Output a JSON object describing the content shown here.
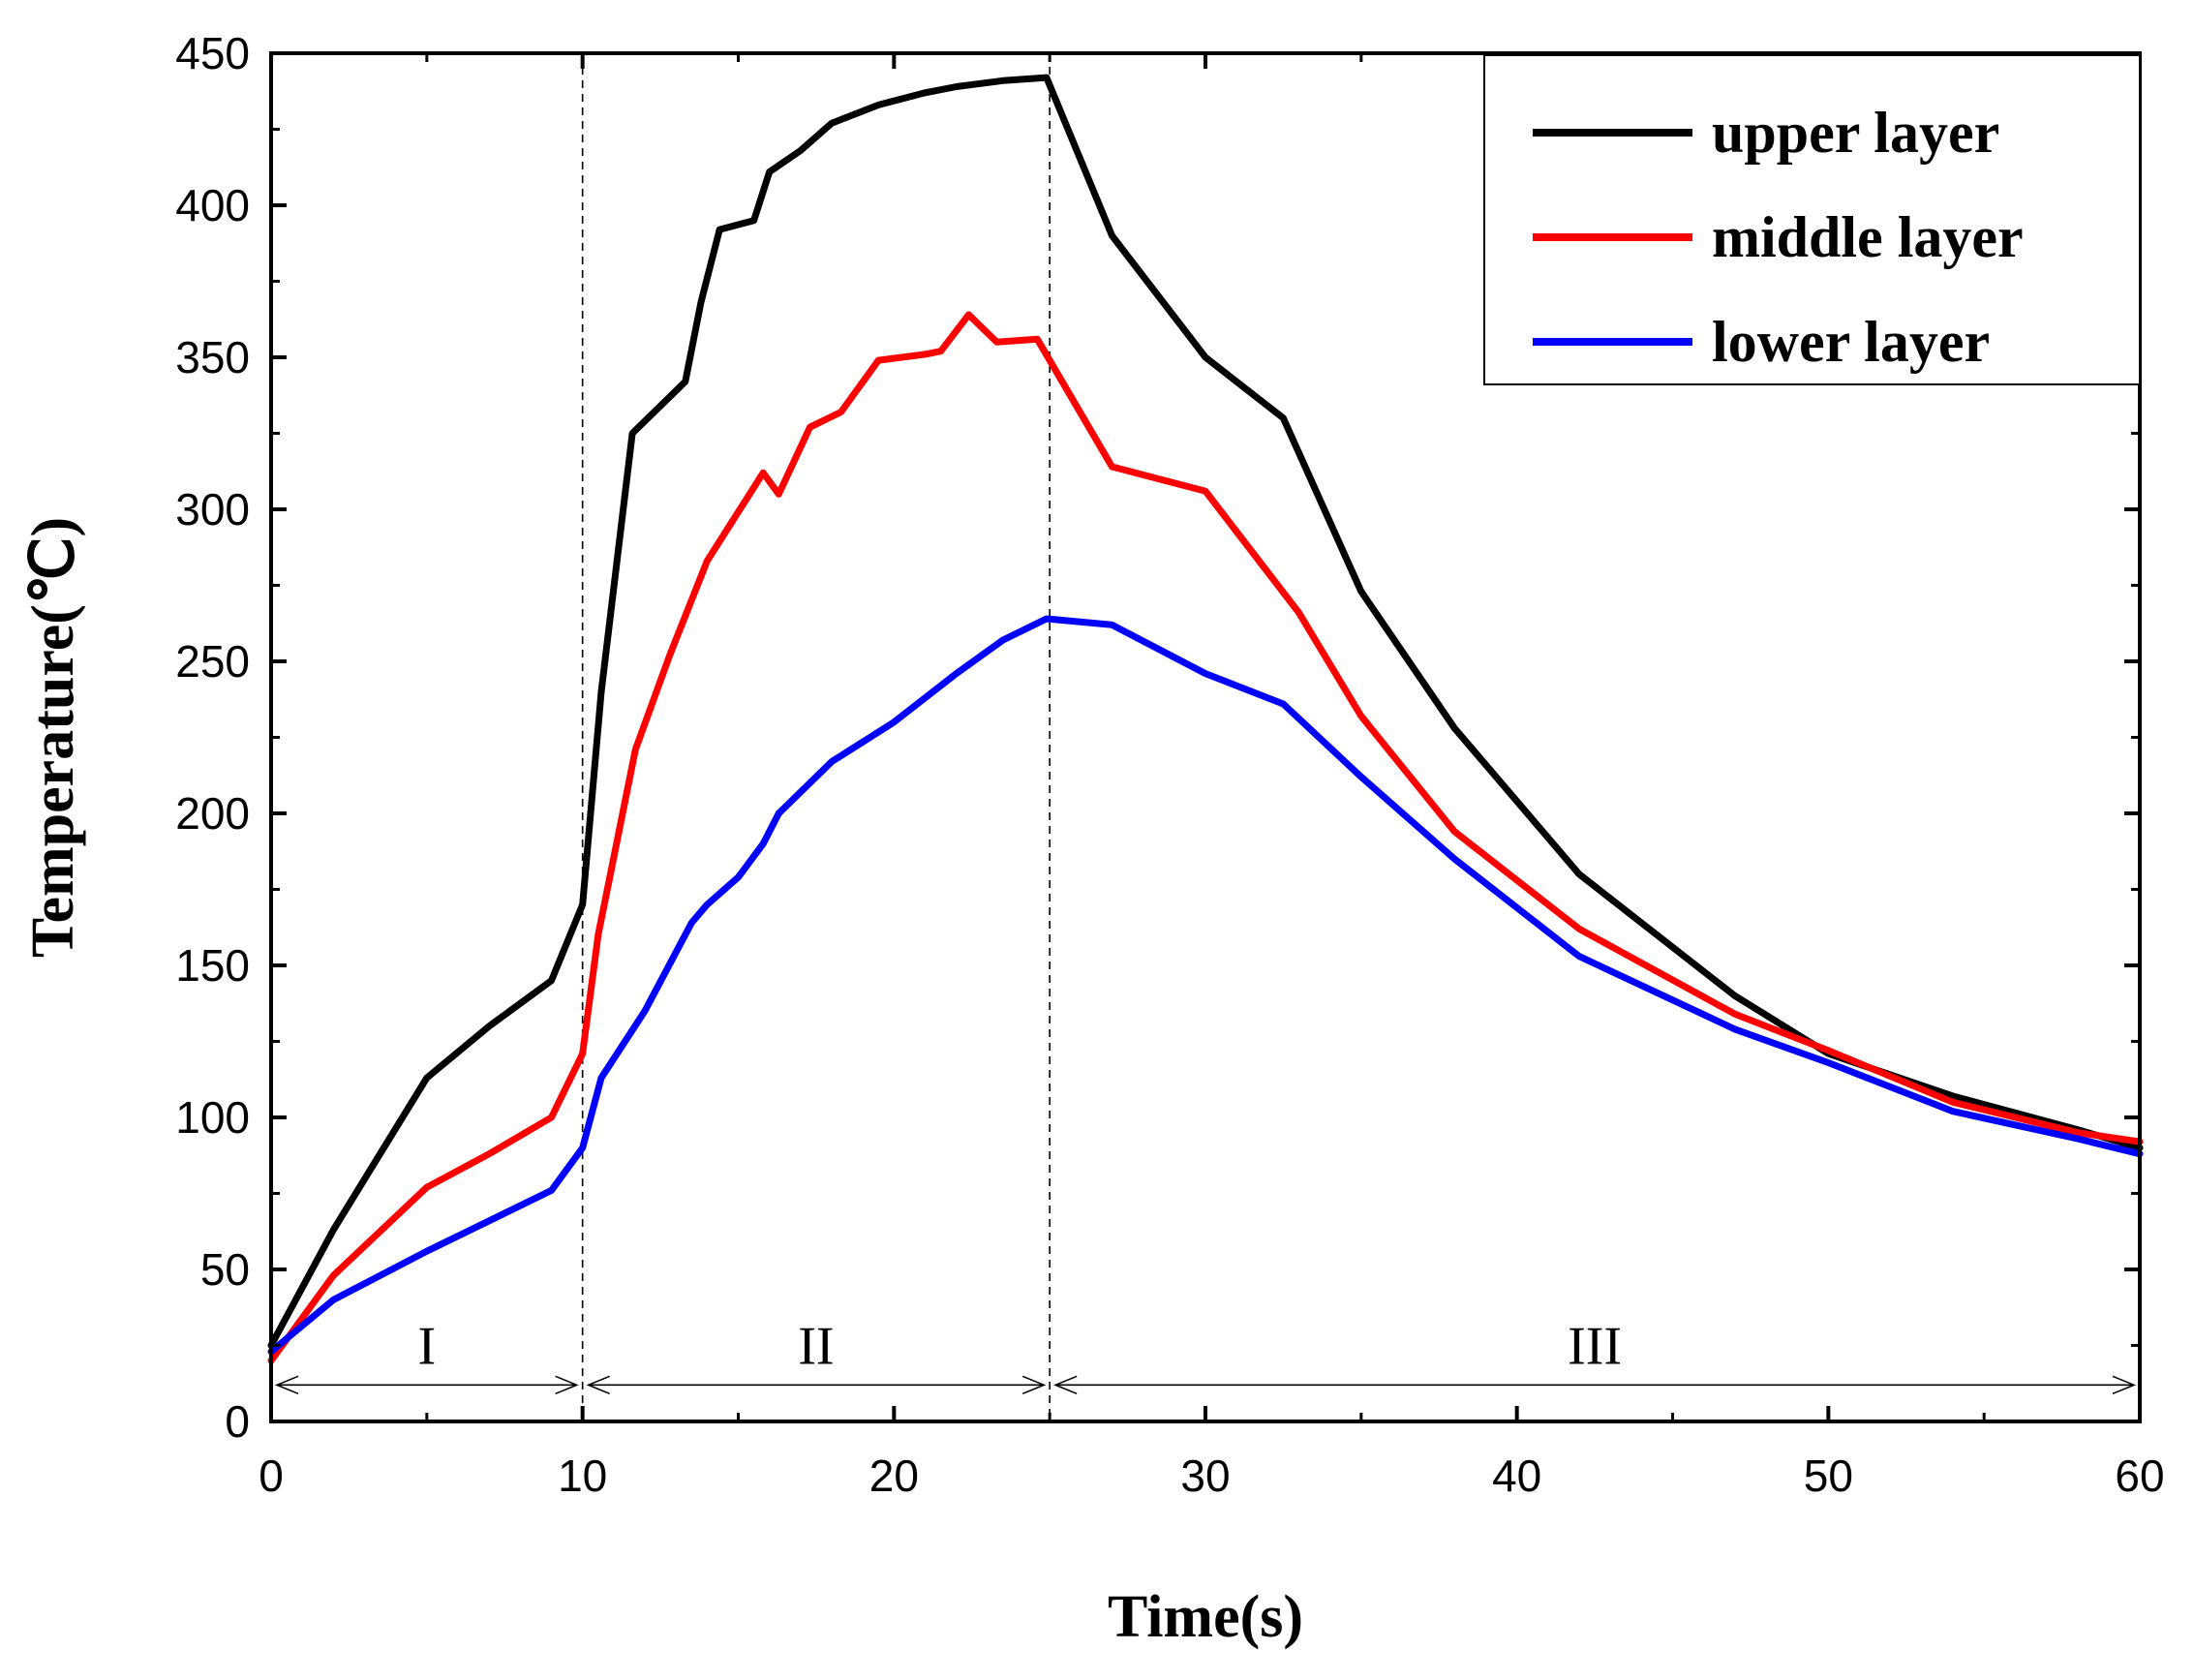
{
  "chart_data": {
    "type": "line",
    "title": "",
    "xlabel": "Time(s)",
    "ylabel": "Temperature(℃)",
    "xlim": [
      0,
      60
    ],
    "ylim": [
      0,
      450
    ],
    "xticks": [
      0,
      10,
      20,
      30,
      40,
      50,
      60
    ],
    "yticks": [
      0,
      50,
      100,
      150,
      200,
      250,
      300,
      350,
      400,
      450
    ],
    "grid": false,
    "legend_position": "top-right",
    "series": [
      {
        "name": "upper layer",
        "color": "#000000",
        "points": [
          [
            0,
            25
          ],
          [
            2,
            63
          ],
          [
            5,
            113
          ],
          [
            7,
            130
          ],
          [
            9,
            145
          ],
          [
            10,
            170
          ],
          [
            10.6,
            240
          ],
          [
            11.6,
            325
          ],
          [
            13.3,
            342
          ],
          [
            13.8,
            368
          ],
          [
            14.4,
            392
          ],
          [
            15.5,
            395
          ],
          [
            16,
            411
          ],
          [
            17,
            418
          ],
          [
            18,
            427
          ],
          [
            19.5,
            433
          ],
          [
            21,
            437
          ],
          [
            22,
            439
          ],
          [
            23.5,
            441
          ],
          [
            24.9,
            442
          ],
          [
            27,
            390
          ],
          [
            30,
            350
          ],
          [
            32.5,
            330
          ],
          [
            35,
            273
          ],
          [
            38,
            228
          ],
          [
            42,
            180
          ],
          [
            47,
            140
          ],
          [
            50,
            121
          ],
          [
            54,
            107
          ],
          [
            58,
            96
          ],
          [
            60,
            90
          ]
        ]
      },
      {
        "name": "middle layer",
        "color": "#ff0000",
        "points": [
          [
            0,
            20
          ],
          [
            2,
            48
          ],
          [
            5,
            77
          ],
          [
            7,
            88
          ],
          [
            9,
            100
          ],
          [
            10,
            121
          ],
          [
            10.5,
            160
          ],
          [
            11.7,
            221
          ],
          [
            12.8,
            252
          ],
          [
            14,
            283
          ],
          [
            15.8,
            312
          ],
          [
            16.3,
            305
          ],
          [
            17.3,
            327
          ],
          [
            18.3,
            332
          ],
          [
            19.5,
            349
          ],
          [
            21,
            351
          ],
          [
            21.5,
            352
          ],
          [
            22.4,
            364
          ],
          [
            23.3,
            355
          ],
          [
            24.6,
            356
          ],
          [
            27,
            314
          ],
          [
            30,
            306
          ],
          [
            33,
            266
          ],
          [
            35,
            232
          ],
          [
            38,
            194
          ],
          [
            42,
            162
          ],
          [
            47,
            134
          ],
          [
            50,
            122
          ],
          [
            54,
            105
          ],
          [
            58,
            95
          ],
          [
            60,
            92
          ]
        ]
      },
      {
        "name": "lower layer",
        "color": "#0000ff",
        "points": [
          [
            0,
            23
          ],
          [
            2,
            40
          ],
          [
            5,
            56
          ],
          [
            7,
            66
          ],
          [
            9,
            76
          ],
          [
            10,
            90
          ],
          [
            10.6,
            113
          ],
          [
            12,
            135
          ],
          [
            13.5,
            164
          ],
          [
            14,
            170
          ],
          [
            15,
            179
          ],
          [
            15.8,
            190
          ],
          [
            16.3,
            200
          ],
          [
            18,
            217
          ],
          [
            20,
            230
          ],
          [
            22,
            246
          ],
          [
            23.5,
            257
          ],
          [
            24.9,
            264
          ],
          [
            27,
            262
          ],
          [
            30,
            246
          ],
          [
            32.5,
            236
          ],
          [
            35,
            212
          ],
          [
            38,
            185
          ],
          [
            42,
            153
          ],
          [
            47,
            129
          ],
          [
            50,
            118
          ],
          [
            54,
            102
          ],
          [
            58,
            93
          ],
          [
            60,
            88
          ]
        ]
      }
    ],
    "phase_boundaries": [
      10,
      25
    ],
    "phases": [
      {
        "label": "I",
        "start": 0,
        "end": 10
      },
      {
        "label": "II",
        "start": 10,
        "end": 25
      },
      {
        "label": "III",
        "start": 25,
        "end": 60
      }
    ]
  }
}
